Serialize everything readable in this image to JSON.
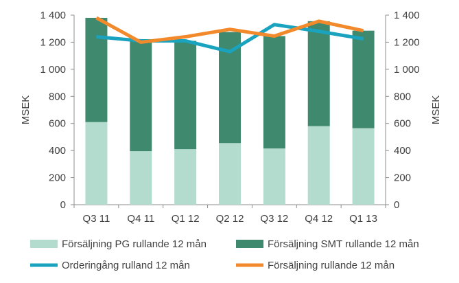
{
  "chart_data": {
    "type": "bar",
    "stacked": true,
    "categories": [
      "Q3 11",
      "Q4 11",
      "Q1 12",
      "Q2 12",
      "Q3 12",
      "Q4 12",
      "Q1 13"
    ],
    "ylabel_left": "MSEK",
    "ylabel_right": "MSEK",
    "ylim": [
      0,
      1400
    ],
    "yticks": [
      0,
      200,
      400,
      600,
      800,
      1000,
      1200,
      1400
    ],
    "ytick_labels": [
      "0",
      "200",
      "400",
      "600",
      "800",
      "1 000",
      "1 200",
      "1 400"
    ],
    "grid": false,
    "legend_position": "bottom",
    "series": [
      {
        "name": "Försäljning PG rullande 12 mån",
        "kind": "bar",
        "color": "#b3dccf",
        "values": [
          610,
          395,
          410,
          455,
          415,
          580,
          565
        ]
      },
      {
        "name": "Försäljning SMT rullande 12 mån",
        "kind": "bar",
        "color": "#3f8a6e",
        "values": [
          770,
          810,
          800,
          820,
          830,
          775,
          720
        ]
      },
      {
        "name": "Orderingång rulland 12 mån",
        "kind": "line",
        "color": "#1aa3bf",
        "values": [
          1240,
          1210,
          1210,
          1130,
          1330,
          1280,
          1225
        ]
      },
      {
        "name": "Försäljning rullande 12 mån",
        "kind": "line",
        "color": "#f28a2c",
        "values": [
          1380,
          1200,
          1240,
          1295,
          1245,
          1355,
          1285
        ]
      }
    ]
  }
}
